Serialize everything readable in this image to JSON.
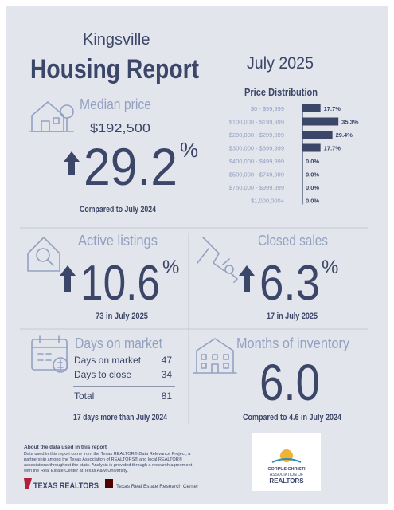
{
  "header": {
    "city": "Kingsville",
    "title": "Housing Report",
    "period": "July 2025"
  },
  "price_distribution": {
    "title": "Price Distribution",
    "categories": [
      "$0 - $99,999",
      "$100,000 - $199,999",
      "$200,000 - $299,999",
      "$300,000 - $399,999",
      "$400,000 - $499,999",
      "$500,000 - $749,999",
      "$750,000 - $999,999",
      "$1,000,000+"
    ],
    "values": [
      17.7,
      35.3,
      29.4,
      17.7,
      0.0,
      0.0,
      0.0,
      0.0
    ],
    "value_labels": [
      "17.7%",
      "35.3%",
      "29.4%",
      "17.7%",
      "0.0%",
      "0.0%",
      "0.0%",
      "0.0%"
    ],
    "color": "#3b4668"
  },
  "median_price": {
    "title": "Median price",
    "price": "$192,500",
    "change": "29.2",
    "unit": "%",
    "note": "Compared to July 2024"
  },
  "active_listings": {
    "title": "Active listings",
    "change": "10.6",
    "unit": "%",
    "note": "73 in July 2025"
  },
  "closed_sales": {
    "title": "Closed sales",
    "change": "6.3",
    "unit": "%",
    "note": "17 in July 2025"
  },
  "days_on_market": {
    "title": "Days on market",
    "rows": [
      [
        "Days on market",
        "47"
      ],
      [
        "Days to close",
        "34"
      ]
    ],
    "total": [
      "Total",
      "81"
    ],
    "note": "17 days more than July 2024"
  },
  "months_of_inventory": {
    "title": "Months of inventory",
    "value": "6.0",
    "note": "Compared to 4.6 in July 2024"
  },
  "footer": {
    "about_title": "About the data used in this report",
    "about_lines": [
      "Data used in this report come from the Texas REALTOR® Data Relevance Project, a",
      "partnership among the Texas Association of REALTORS® and local REALTOR®",
      "associations throughout the state. Analysis is provided through a research agreement",
      "with the Real Estate Center at Texas A&M University."
    ],
    "logo_left": "TEXAS REALTORS",
    "logo_center": "Texas Real Estate Research Center",
    "logo_right": [
      "CORPUS CHRISTI",
      "ASSOCIATION OF",
      "REALTORS"
    ]
  }
}
